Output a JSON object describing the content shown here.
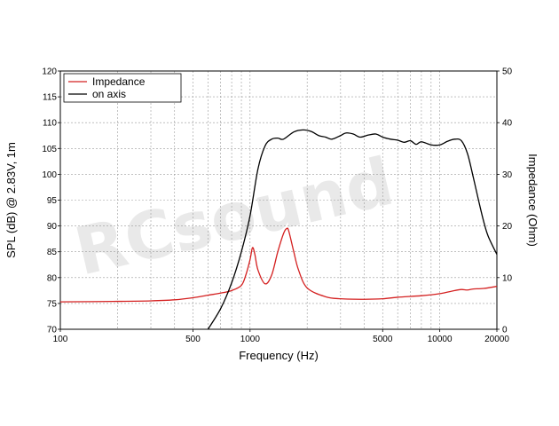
{
  "chart_data": {
    "type": "line",
    "xlabel": "Frequency (Hz)",
    "ylabel": "SPL (dB) @ 2.83V, 1m",
    "y2label": "Impedance (Ohm)",
    "xscale": "log",
    "xlim": [
      100,
      20000
    ],
    "ylim": [
      70,
      120
    ],
    "y2lim": [
      0,
      50
    ],
    "grid": true,
    "legend_position": "top-left",
    "x_tick_labels": [
      "100",
      "500",
      "1000",
      "5000",
      "10000",
      "20000"
    ],
    "x_ticks": [
      100,
      500,
      1000,
      5000,
      10000,
      20000
    ],
    "y_ticks": [
      70,
      75,
      80,
      85,
      90,
      95,
      100,
      105,
      110,
      115,
      120
    ],
    "y2_ticks": [
      0,
      10,
      20,
      30,
      40,
      50
    ],
    "watermark": "RCsound",
    "series": [
      {
        "name": "Impedance",
        "axis": "right",
        "color": "#d42020",
        "x": [
          100,
          200,
          300,
          400,
          500,
          600,
          700,
          800,
          900,
          950,
          1000,
          1030,
          1060,
          1100,
          1200,
          1300,
          1400,
          1500,
          1560,
          1600,
          1700,
          1800,
          2000,
          2500,
          3000,
          4000,
          5000,
          6000,
          8000,
          10000,
          12000,
          13000,
          14000,
          15000,
          17000,
          20000
        ],
        "y": [
          5.3,
          5.4,
          5.5,
          5.7,
          6.1,
          6.6,
          7.0,
          7.5,
          8.5,
          10.5,
          13.5,
          15.8,
          14.5,
          11.5,
          8.8,
          10.5,
          15.0,
          18.5,
          19.5,
          19.0,
          15.0,
          11.5,
          8.0,
          6.3,
          5.9,
          5.8,
          5.9,
          6.2,
          6.5,
          6.9,
          7.5,
          7.7,
          7.6,
          7.8,
          7.9,
          8.3
        ]
      },
      {
        "name": "on axis",
        "axis": "left",
        "color": "#000000",
        "x": [
          600,
          700,
          800,
          900,
          1000,
          1100,
          1200,
          1300,
          1400,
          1500,
          1700,
          1900,
          2100,
          2300,
          2500,
          2700,
          3000,
          3200,
          3500,
          3800,
          4200,
          4600,
          5000,
          5500,
          6000,
          6500,
          7000,
          7500,
          8000,
          9000,
          10000,
          11000,
          12000,
          13000,
          14000,
          15000,
          16000,
          17000,
          18000,
          20000
        ],
        "y": [
          70,
          74,
          79,
          85,
          92,
          101,
          105.5,
          106.8,
          107,
          106.8,
          108.2,
          108.6,
          108.3,
          107.5,
          107.2,
          106.8,
          107.5,
          108,
          107.8,
          107.2,
          107.6,
          107.8,
          107.2,
          106.8,
          106.6,
          106.2,
          106.5,
          105.8,
          106.3,
          105.7,
          105.7,
          106.4,
          106.8,
          106.5,
          104,
          99.5,
          95,
          91,
          88,
          84.5
        ]
      }
    ]
  }
}
